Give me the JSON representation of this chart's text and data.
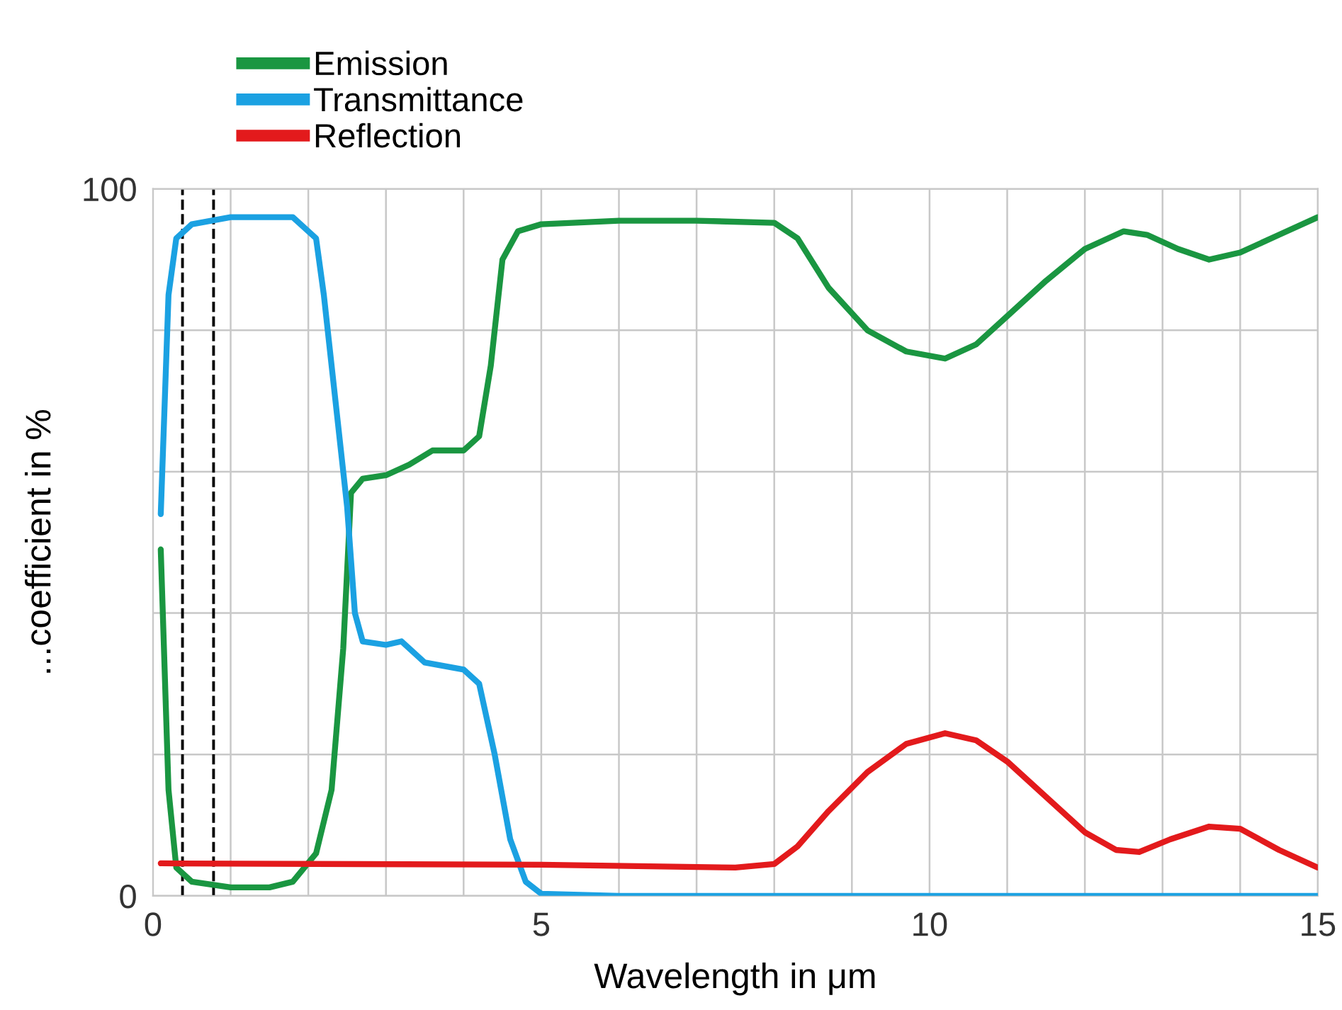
{
  "chart_data": {
    "type": "line",
    "xlabel": "Wavelength in μm",
    "ylabel": "...coefficient in %",
    "xlim": [
      0,
      15
    ],
    "ylim": [
      0,
      100
    ],
    "xticks": [
      0,
      {
        "value": 1,
        "label": null
      },
      {
        "value": 2,
        "label": null
      },
      {
        "value": 3,
        "label": null
      },
      {
        "value": 4,
        "label": null
      },
      5,
      {
        "value": 6,
        "label": null
      },
      {
        "value": 7,
        "label": null
      },
      {
        "value": 8,
        "label": null
      },
      {
        "value": 9,
        "label": null
      },
      10,
      {
        "value": 11,
        "label": null
      },
      {
        "value": 12,
        "label": null
      },
      {
        "value": 13,
        "label": null
      },
      {
        "value": 14,
        "label": null
      },
      15
    ],
    "yticks": [
      0,
      {
        "value": 20,
        "label": null
      },
      {
        "value": 40,
        "label": null
      },
      {
        "value": 60,
        "label": null
      },
      {
        "value": 80,
        "label": null
      },
      100
    ],
    "grid": true,
    "legend": "top left",
    "marker": "none",
    "line_style": "solid",
    "ref_lines": [
      {
        "axis": "x",
        "value": 0.38,
        "color": "#000000",
        "line_style": "dashed"
      },
      {
        "axis": "x",
        "value": 0.78,
        "color": "#000000",
        "line_style": "dashed"
      }
    ],
    "series": [
      {
        "name": "Emission",
        "color": "#1a9641",
        "x": [
          0.1,
          0.2,
          0.3,
          0.5,
          1.0,
          1.5,
          1.8,
          2.1,
          2.3,
          2.45,
          2.55,
          2.7,
          3.0,
          3.3,
          3.6,
          4.0,
          4.2,
          4.35,
          4.5,
          4.7,
          5,
          6,
          7,
          8,
          8.3,
          8.7,
          9.2,
          9.7,
          10.2,
          10.6,
          11,
          11.5,
          12,
          12.5,
          12.8,
          13.2,
          13.6,
          14,
          14.5,
          15
        ],
        "values": [
          49,
          15,
          4,
          2,
          1.2,
          1.2,
          2,
          6,
          15,
          35,
          57,
          59,
          59.5,
          61,
          63,
          63,
          65,
          75,
          90,
          94,
          95,
          95.5,
          95.5,
          95.2,
          93,
          86,
          80,
          77,
          76,
          78,
          82,
          87,
          91.5,
          94,
          93.5,
          91.5,
          90,
          91,
          93.5,
          96
        ]
      },
      {
        "name": "Transmittance",
        "color": "#1ba1e2",
        "x": [
          0.1,
          0.2,
          0.3,
          0.5,
          1.0,
          1.8,
          2.1,
          2.2,
          2.35,
          2.5,
          2.6,
          2.7,
          3.0,
          3.2,
          3.5,
          4.0,
          4.2,
          4.4,
          4.6,
          4.8,
          5.0,
          6,
          15
        ],
        "values": [
          54,
          85,
          93,
          95,
          96,
          96,
          93,
          85,
          70,
          55,
          40,
          36,
          35.5,
          36,
          33,
          32,
          30,
          20,
          8,
          2,
          0.3,
          0,
          0
        ]
      },
      {
        "name": "Reflection",
        "color": "#e31a1c",
        "x": [
          0.1,
          5,
          7.5,
          8.0,
          8.3,
          8.7,
          9.2,
          9.7,
          10.2,
          10.6,
          11,
          11.5,
          12,
          12.4,
          12.7,
          13.1,
          13.6,
          14,
          14.5,
          15
        ],
        "values": [
          4.6,
          4.4,
          4.0,
          4.5,
          7,
          12,
          17.5,
          21.5,
          23,
          22,
          19,
          14,
          9,
          6.5,
          6.2,
          8,
          9.8,
          9.5,
          6.5,
          4
        ]
      }
    ]
  }
}
